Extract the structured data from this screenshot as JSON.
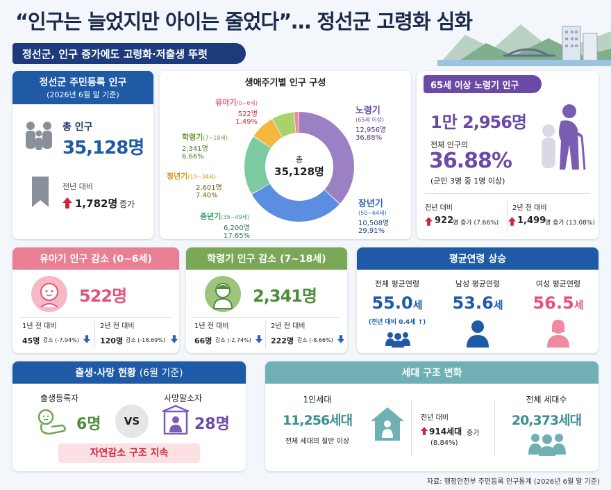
{
  "header": {
    "title": "“인구는 늘었지만 아이는 줄었다”… 정선군 고령화 심화",
    "subtitle": "정선군, 인구 증가에도 고령화·저출생 뚜렷"
  },
  "population": {
    "title": "정선군 주민등록 인구",
    "basis": "(2026년 6월 말 기준)",
    "total_label": "총 인구",
    "total_value": "35,128명",
    "yoy_label": "전년 대비",
    "yoy_value": "1,782명",
    "yoy_suffix": "증가"
  },
  "lifecycle": {
    "title": "생애주기별 인구 구성",
    "center_label": "총",
    "center_value": "35,128명",
    "segments": [
      {
        "name": "노령기",
        "range": "(65세 이상)",
        "count": "12,956명",
        "pct": "36.88%",
        "value": 36.88,
        "color": "#9b80c4"
      },
      {
        "name": "장년기",
        "range": "(50~64세)",
        "count": "10,508명",
        "pct": "29.91%",
        "value": 29.91,
        "color": "#5b8ee0"
      },
      {
        "name": "중년기",
        "range": "(35~49세)",
        "count": "6,200명",
        "pct": "17.65%",
        "value": 17.65,
        "color": "#7ccba0"
      },
      {
        "name": "청년기",
        "range": "(19~34세)",
        "count": "2,601명",
        "pct": "7.40%",
        "value": 7.4,
        "color": "#f5b73d"
      },
      {
        "name": "학령기",
        "range": "(7~18세)",
        "count": "2,341명",
        "pct": "6.66%",
        "value": 6.66,
        "color": "#a8d26a"
      },
      {
        "name": "유아기",
        "range": "(0~6세)",
        "count": "522명",
        "pct": "1.49%",
        "value": 1.49,
        "color": "#f08aa0"
      }
    ]
  },
  "elderly": {
    "title": "65세 이상 노령기 인구",
    "count_big1": "1만",
    "count_big2": "2,956명",
    "share_label": "전체 인구의",
    "share_value": "36.88%",
    "share_note": "(군민 3명 중 1명 이상)",
    "yoy_label": "전년 대비",
    "yoy_value": "922",
    "yoy_suffix": "명 증가 (7.66%)",
    "two_year_label": "2년 전 대비",
    "two_year_value": "1,499",
    "two_year_suffix": "명 증가 (13.08%)"
  },
  "infant": {
    "title": "유아기 인구 감소 (0~6세)",
    "value": "522명",
    "c1_label": "1년 전 대비",
    "c1_value": "45명",
    "c1_suffix": "감소 (-7.94%)",
    "c2_label": "2년 전 대비",
    "c2_value": "120명",
    "c2_suffix": "감소 (-18.69%)"
  },
  "school": {
    "title": "학령기 인구 감소 (7~18세)",
    "value": "2,341명",
    "c1_label": "1년 전 대비",
    "c1_value": "66명",
    "c1_suffix": "감소 (-2.74%)",
    "c2_label": "2년 전 대비",
    "c2_value": "222명",
    "c2_suffix": "감소 (-8.66%)"
  },
  "age": {
    "title": "평균연령 상승",
    "overall_label": "전체 평균연령",
    "overall_value": "55.0",
    "overall_unit": "세",
    "overall_note": "(전년 대비 0.4세 ↑)",
    "male_label": "남성 평균연령",
    "male_value": "53.6",
    "male_unit": "세",
    "female_label": "여성 평균연령",
    "female_value": "56.5",
    "female_unit": "세"
  },
  "birth": {
    "title_main": "출생·사망 현황",
    "title_basis": "(6월 기준)",
    "birth_label": "출생등록자",
    "birth_value": "6명",
    "vs": "VS",
    "death_label": "사망말소자",
    "death_value": "28명",
    "banner": "자연감소 구조 지속"
  },
  "household": {
    "title": "세대 구조 변화",
    "single_label": "1인세대",
    "single_value": "11,256세대",
    "single_note": "전체 세대의 절반 이상",
    "yoy_label": "전년 대비",
    "yoy_value": "914세대",
    "yoy_suffix": "증가",
    "yoy_pct": "(8.84%)",
    "total_label": "전체 세대수",
    "total_value": "20,373세대"
  },
  "source": "자료: 행정안전부 주민등록 인구통계 (2026년 6월 말 기준)"
}
